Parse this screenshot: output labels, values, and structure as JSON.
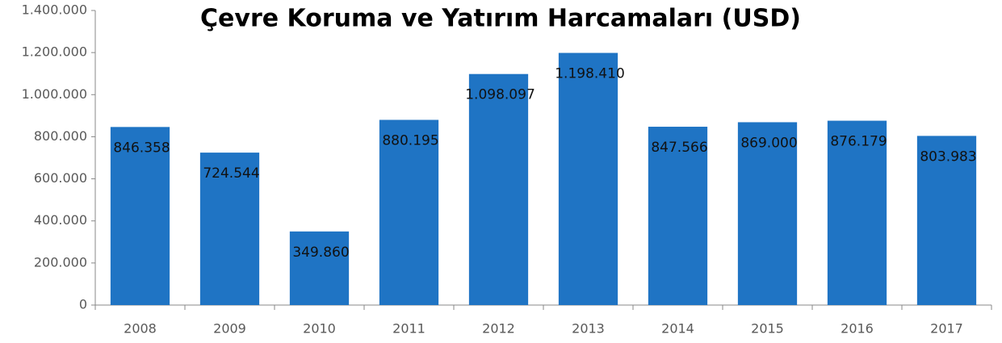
{
  "chart_data": {
    "type": "bar",
    "title": "Çevre Koruma ve Yatırım Harcamaları (USD)",
    "categories": [
      "2008",
      "2009",
      "2010",
      "2011",
      "2012",
      "2013",
      "2014",
      "2015",
      "2016",
      "2017"
    ],
    "values": [
      846358,
      724544,
      349860,
      880195,
      1098097,
      1198410,
      847566,
      869000,
      876179,
      803983
    ],
    "value_labels": [
      "846.358",
      "724.544",
      "349.860",
      "880.195",
      "1.098.097",
      "1.198.410",
      "847.566",
      "869.000",
      "876.179",
      "803.983"
    ],
    "color": "#1f74c4",
    "ylim": [
      0,
      1400000
    ],
    "yticks": [
      0,
      {
        "value": 200000,
        "label": "200.000"
      },
      {
        "value": 400000,
        "label": "400.000"
      },
      {
        "value": 600000,
        "label": "600.000"
      },
      {
        "value": 800000,
        "label": "800.000"
      },
      {
        "value": 1000000,
        "label": "1.000.000"
      },
      {
        "value": 1200000,
        "label": "1.200.000"
      },
      {
        "value": 1400000,
        "label": "1.400.000"
      }
    ],
    "grid": false
  }
}
